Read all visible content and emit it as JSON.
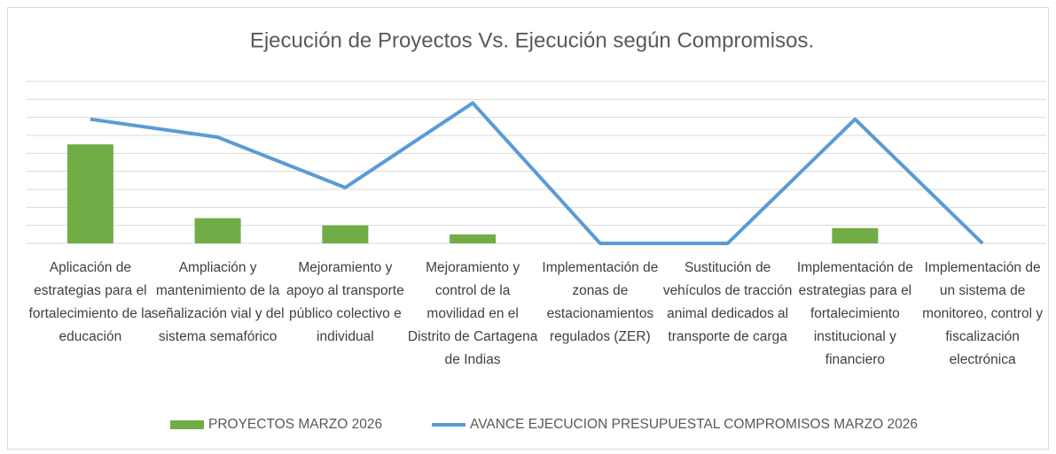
{
  "chart_data": {
    "type": "bar_line",
    "title": "Ejecución de Proyectos Vs. Ejecución según Compromisos.",
    "categories": [
      "Aplicación de estrategias para el fortalecimiento de la educación",
      "Ampliación y mantenimiento de la señalización vial y del sistema semafórico",
      "Mejoramiento y apoyo al transporte público colectivo e individual",
      "Mejoramiento y control de la movilidad en el Distrito de Cartagena de Indias",
      "Implementación de zonas de estacionamientos regulados (ZER)",
      "Sustitución de vehículos de tracción animal dedicados al transporte de carga",
      "Implementación de estrategias para el fortalecimiento institucional y financiero",
      "Implementación de un sistema de monitoreo, control y fiscalización electrónica"
    ],
    "series": [
      {
        "name": "PROYECTOS  MARZO 2026",
        "color": "#70ad47",
        "kind": "bar",
        "values": [
          5.5,
          1.4,
          1.0,
          0.5,
          0,
          0,
          0.85,
          0
        ]
      },
      {
        "name": "AVANCE EJECUCION PRESUPUESTAL COMPROMISOS  MARZO 2026",
        "color": "#5b9bd5",
        "kind": "line",
        "values": [
          6.9,
          5.9,
          3.1,
          7.8,
          0,
          0,
          6.9,
          0
        ]
      }
    ],
    "ylim": [
      0,
      9
    ],
    "yticks": [
      0,
      1,
      2,
      3,
      4,
      5,
      6,
      7,
      8,
      9
    ],
    "grid": true,
    "legend": "bottom"
  }
}
